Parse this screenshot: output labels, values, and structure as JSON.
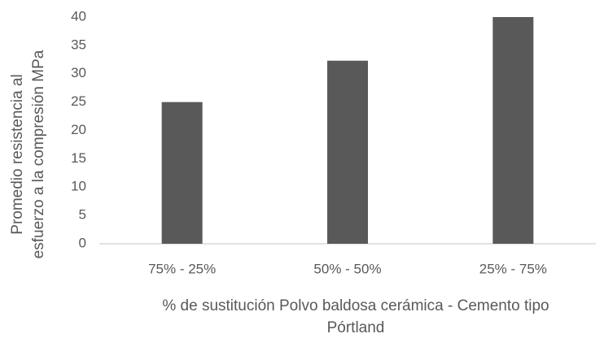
{
  "chart_data": {
    "type": "bar",
    "categories": [
      "75% - 25%",
      "50% - 50%",
      "25% - 75%"
    ],
    "values": [
      25,
      32.3,
      40
    ],
    "color": "#595959",
    "ylim": [
      0,
      40
    ],
    "yticks": [
      0,
      5,
      10,
      15,
      20,
      25,
      30,
      35,
      40
    ],
    "grid": false,
    "x_label": [
      "% de sustitución Polvo baldosa cerámica - Cemento tipo",
      "Pórtland"
    ],
    "y_label": [
      "Promedio resistencia al",
      "esfuerzo a la compresión MPa"
    ]
  }
}
